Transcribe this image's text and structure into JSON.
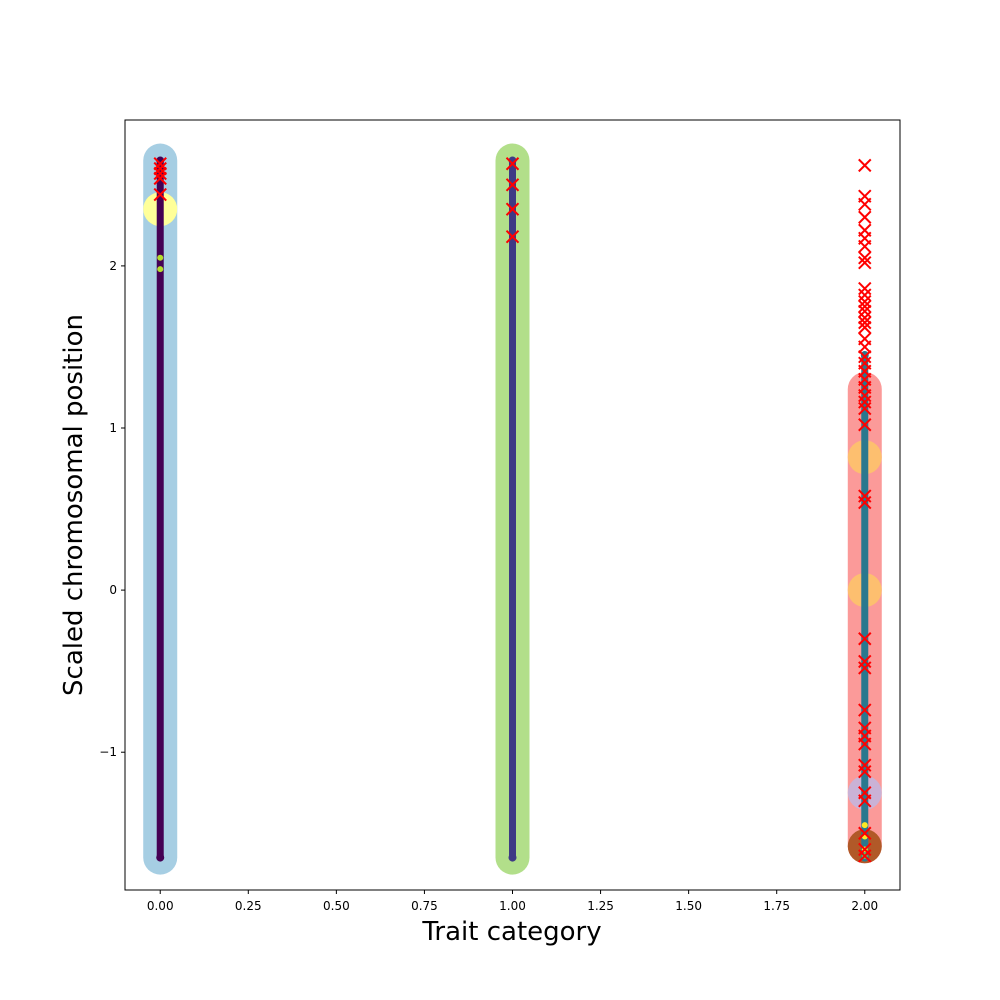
{
  "chart_data": {
    "type": "scatter",
    "title": "",
    "xlabel": "Trait category",
    "ylabel": "Scaled chromosomal position",
    "xlim": [
      -0.1,
      2.1
    ],
    "ylim": [
      -1.85,
      2.9
    ],
    "xticks": [
      0.0,
      0.25,
      0.5,
      0.75,
      1.0,
      1.25,
      1.5,
      1.75,
      2.0
    ],
    "xtick_labels": [
      "0.00",
      "0.25",
      "0.50",
      "0.75",
      "1.00",
      "1.25",
      "1.50",
      "1.75",
      "2.00"
    ],
    "yticks": [
      -1,
      0,
      1,
      2
    ],
    "ytick_labels": [
      "−1",
      "0",
      "1",
      "2"
    ],
    "grid": false,
    "colors": {
      "cat0_band": "#a6cee3",
      "cat0_star": "#440154",
      "cat0_yellow": "#ffff99",
      "cat1_band": "#b2df8a",
      "cat1_star": "#3e3a85",
      "cat2_band": "#fb9a99",
      "cat2_star": "#2a788e",
      "cat2_orange": "#fdbf6f",
      "cat2_lavender": "#cab2d6",
      "cat2_brown": "#b15928",
      "cat2_yellow_dot": "#fde725",
      "cross": "#ff0000"
    },
    "bands": [
      {
        "name": "",
        "x": 0,
        "y_min": -1.65,
        "y_max": 2.65,
        "color": "#a6cee3"
      },
      {
        "name": "",
        "x": 1,
        "y_min": -1.65,
        "y_max": 2.65,
        "color": "#b2df8a"
      },
      {
        "name": "",
        "x": 2,
        "y_min": -1.58,
        "y_max": 1.24,
        "color": "#fb9a99"
      }
    ],
    "big_points": [
      {
        "x": 0,
        "y": 2.35,
        "color": "#ffff99"
      },
      {
        "x": 2,
        "y": 0.82,
        "color": "#fdbf6f"
      },
      {
        "x": 2,
        "y": 0.0,
        "color": "#fdbf6f"
      },
      {
        "x": 2,
        "y": -1.25,
        "color": "#cab2d6"
      },
      {
        "x": 2,
        "y": -1.58,
        "color": "#b15928"
      }
    ],
    "star_columns": [
      {
        "x": 0,
        "y_min": -1.65,
        "y_max": 2.65,
        "color": "#440154"
      },
      {
        "x": 1,
        "y_min": -1.65,
        "y_max": 2.65,
        "color": "#3e3a85"
      },
      {
        "x": 2,
        "y_min": -1.65,
        "y_max": 1.45,
        "color": "#2a788e"
      }
    ],
    "small_dots": [
      {
        "x": 0,
        "y": 2.05,
        "color": "#b5de2b"
      },
      {
        "x": 0,
        "y": 1.98,
        "color": "#b5de2b"
      },
      {
        "x": 2,
        "y": -1.45,
        "color": "#fde725"
      },
      {
        "x": 2,
        "y": -1.52,
        "color": "#fde725"
      },
      {
        "x": 2,
        "y": -1.6,
        "color": "#fde725"
      },
      {
        "x": 2,
        "y": -1.64,
        "color": "#5ec962"
      }
    ],
    "crosses": [
      {
        "x": 0,
        "y": 2.63
      },
      {
        "x": 0,
        "y": 2.6
      },
      {
        "x": 0,
        "y": 2.57
      },
      {
        "x": 0,
        "y": 2.54
      },
      {
        "x": 0,
        "y": 2.44
      },
      {
        "x": 1,
        "y": 2.63
      },
      {
        "x": 1,
        "y": 2.5
      },
      {
        "x": 1,
        "y": 2.35
      },
      {
        "x": 1,
        "y": 2.18
      },
      {
        "x": 2,
        "y": 2.62
      },
      {
        "x": 2,
        "y": 2.43
      },
      {
        "x": 2,
        "y": 2.38
      },
      {
        "x": 2,
        "y": 2.3
      },
      {
        "x": 2,
        "y": 2.22
      },
      {
        "x": 2,
        "y": 2.17
      },
      {
        "x": 2,
        "y": 2.12
      },
      {
        "x": 2,
        "y": 2.05
      },
      {
        "x": 2,
        "y": 2.02
      },
      {
        "x": 2,
        "y": 1.86
      },
      {
        "x": 2,
        "y": 1.82
      },
      {
        "x": 2,
        "y": 1.78
      },
      {
        "x": 2,
        "y": 1.75
      },
      {
        "x": 2,
        "y": 1.72
      },
      {
        "x": 2,
        "y": 1.68
      },
      {
        "x": 2,
        "y": 1.65
      },
      {
        "x": 2,
        "y": 1.62
      },
      {
        "x": 2,
        "y": 1.55
      },
      {
        "x": 2,
        "y": 1.5
      },
      {
        "x": 2,
        "y": 1.44
      },
      {
        "x": 2,
        "y": 1.4
      },
      {
        "x": 2,
        "y": 1.35
      },
      {
        "x": 2,
        "y": 1.3
      },
      {
        "x": 2,
        "y": 1.25
      },
      {
        "x": 2,
        "y": 1.2
      },
      {
        "x": 2,
        "y": 1.16
      },
      {
        "x": 2,
        "y": 1.12
      },
      {
        "x": 2,
        "y": 1.02
      },
      {
        "x": 2,
        "y": 0.58
      },
      {
        "x": 2,
        "y": 0.54
      },
      {
        "x": 2,
        "y": -0.3
      },
      {
        "x": 2,
        "y": -0.44
      },
      {
        "x": 2,
        "y": -0.48
      },
      {
        "x": 2,
        "y": -0.74
      },
      {
        "x": 2,
        "y": -0.85
      },
      {
        "x": 2,
        "y": -0.9
      },
      {
        "x": 2,
        "y": -0.95
      },
      {
        "x": 2,
        "y": -1.08
      },
      {
        "x": 2,
        "y": -1.12
      },
      {
        "x": 2,
        "y": -1.25
      },
      {
        "x": 2,
        "y": -1.3
      },
      {
        "x": 2,
        "y": -1.5
      },
      {
        "x": 2,
        "y": -1.6
      },
      {
        "x": 2,
        "y": -1.64
      }
    ]
  }
}
